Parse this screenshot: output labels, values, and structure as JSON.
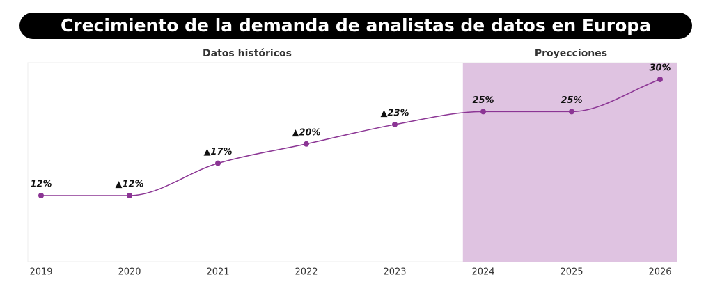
{
  "chart_data": {
    "type": "line",
    "title": "Crecimiento de la demanda de analistas de datos en Europa",
    "sections": [
      {
        "label": "Datos históricos"
      },
      {
        "label": "Proyecciones",
        "color": "#dfc3e1"
      }
    ],
    "categories": [
      "2019",
      "2020",
      "2021",
      "2022",
      "2023",
      "2024",
      "2025",
      "2026"
    ],
    "values": [
      12,
      12,
      17,
      20,
      23,
      25,
      25,
      30
    ],
    "value_labels": [
      "12%",
      "▲12%",
      "▲17%",
      "▲20%",
      "▲23%",
      "25%",
      "25%",
      "30%"
    ],
    "color": "#8b3594"
  }
}
